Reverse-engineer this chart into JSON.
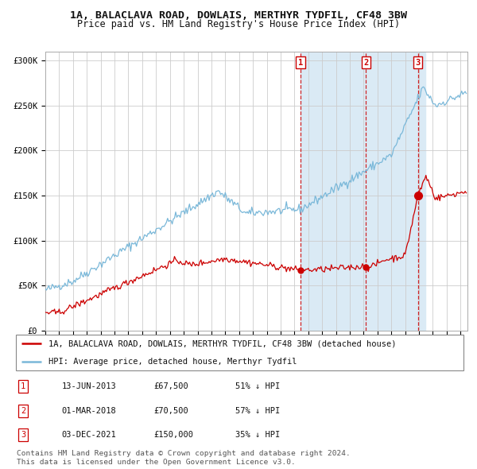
{
  "title": "1A, BALACLAVA ROAD, DOWLAIS, MERTHYR TYDFIL, CF48 3BW",
  "subtitle": "Price paid vs. HM Land Registry's House Price Index (HPI)",
  "ylabel_ticks": [
    "£0",
    "£50K",
    "£100K",
    "£150K",
    "£200K",
    "£250K",
    "£300K"
  ],
  "ytick_vals": [
    0,
    50000,
    100000,
    150000,
    200000,
    250000,
    300000
  ],
  "ylim": [
    0,
    310000
  ],
  "xlim_start": 1995.0,
  "xlim_end": 2025.5,
  "hpi_color": "#7ab8d9",
  "price_color": "#cc0000",
  "bg_color": "#ffffff",
  "grid_color": "#cccccc",
  "shade_color": "#daeaf5",
  "sale1_x": 2013.45,
  "sale1_y": 67500,
  "sale2_x": 2018.17,
  "sale2_y": 70500,
  "sale3_x": 2021.92,
  "sale3_y": 150000,
  "legend_red_label": "1A, BALACLAVA ROAD, DOWLAIS, MERTHYR TYDFIL, CF48 3BW (detached house)",
  "legend_blue_label": "HPI: Average price, detached house, Merthyr Tydfil",
  "table_rows": [
    [
      "1",
      "13-JUN-2013",
      "£67,500",
      "51% ↓ HPI"
    ],
    [
      "2",
      "01-MAR-2018",
      "£70,500",
      "57% ↓ HPI"
    ],
    [
      "3",
      "03-DEC-2021",
      "£150,000",
      "35% ↓ HPI"
    ]
  ],
  "footer": "Contains HM Land Registry data © Crown copyright and database right 2024.\nThis data is licensed under the Open Government Licence v3.0."
}
